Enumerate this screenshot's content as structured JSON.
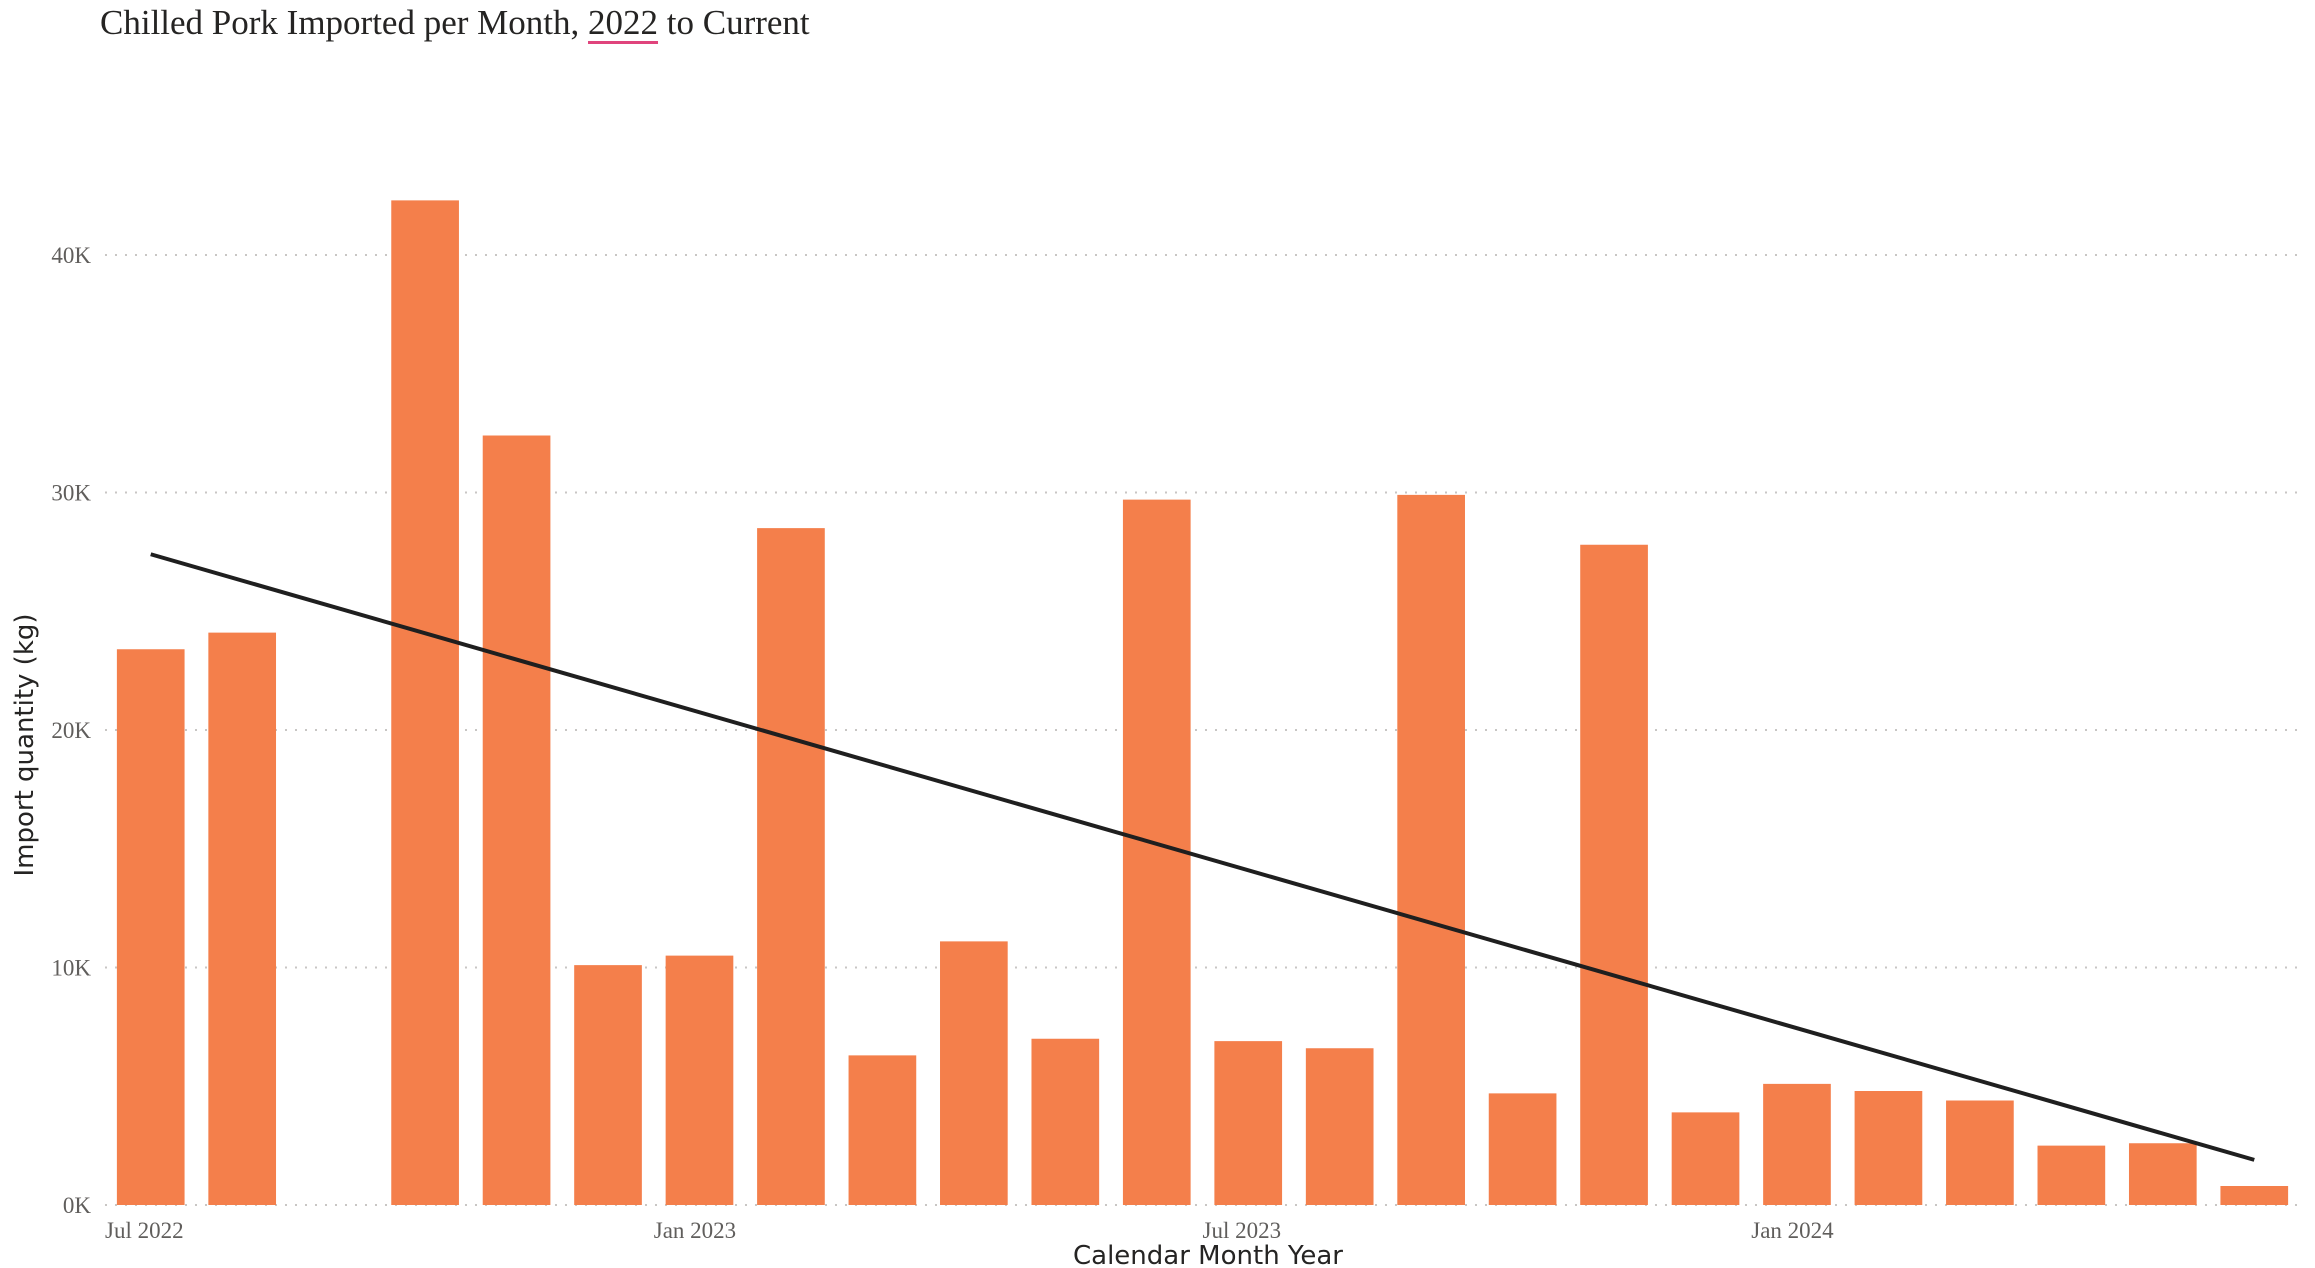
{
  "title": {
    "prefix": "Chilled Pork Imported per Month, ",
    "year": "2022",
    "suffix": " to Current"
  },
  "chart_data": {
    "type": "bar",
    "xlabel": "Calendar Month Year",
    "ylabel": "Import quantity (kg)",
    "ylim": [
      0,
      44000
    ],
    "yticks": [
      0,
      10000,
      20000,
      30000,
      40000
    ],
    "ytick_labels": [
      "0K",
      "10K",
      "20K",
      "30K",
      "40K"
    ],
    "xtick_labels": [
      {
        "month": "2022-07",
        "label": "Jul 2022"
      },
      {
        "month": "2023-01",
        "label": "Jan 2023"
      },
      {
        "month": "2023-07",
        "label": "Jul 2023"
      },
      {
        "month": "2024-01",
        "label": "Jan 2024"
      }
    ],
    "grid": true,
    "bar_color": "#f47f4b",
    "trend_color": "#1f1f1f",
    "categories": [
      "2022-07",
      "2022-08",
      "2022-09",
      "2022-10",
      "2022-11",
      "2022-12",
      "2023-01",
      "2023-02",
      "2023-03",
      "2023-04",
      "2023-05",
      "2023-06",
      "2023-07",
      "2023-08",
      "2023-09",
      "2023-10",
      "2023-11",
      "2023-12",
      "2024-01",
      "2024-02",
      "2024-03",
      "2024-04",
      "2024-05",
      "2024-06"
    ],
    "values": [
      23400,
      24100,
      null,
      42300,
      32400,
      10100,
      10500,
      28500,
      6300,
      11100,
      7000,
      29700,
      6900,
      6600,
      29900,
      4700,
      27800,
      3900,
      5100,
      4800,
      4400,
      2500,
      2600,
      800
    ],
    "trendline": {
      "start": {
        "x": "2022-07",
        "y": 27400
      },
      "end": {
        "x": "2024-06",
        "y": 1900
      }
    }
  }
}
